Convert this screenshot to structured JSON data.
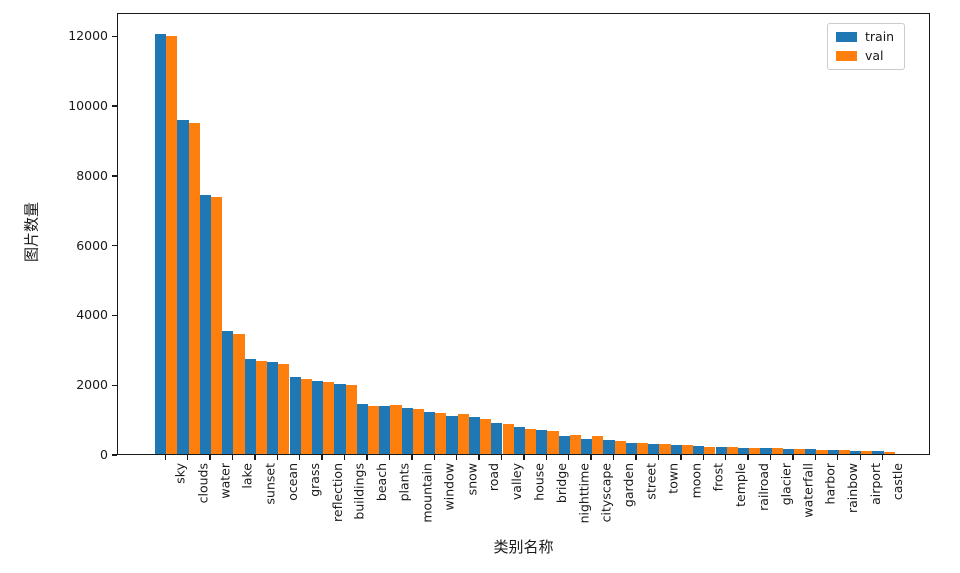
{
  "figure": {
    "background": "#ffffff"
  },
  "chart_data": {
    "type": "bar",
    "title": "",
    "xlabel": "类别名称",
    "ylabel": "图片数量",
    "categories": [
      "sky",
      "clouds",
      "water",
      "lake",
      "sunset",
      "ocean",
      "grass",
      "reflection",
      "buildings",
      "beach",
      "plants",
      "mountain",
      "window",
      "snow",
      "road",
      "valley",
      "house",
      "bridge",
      "nighttime",
      "cityscape",
      "garden",
      "street",
      "town",
      "moon",
      "frost",
      "temple",
      "railroad",
      "glacier",
      "waterfall",
      "harbor",
      "rainbow",
      "airport",
      "castle"
    ],
    "series": [
      {
        "name": "train",
        "color": "#1f77b4",
        "values": [
          12050,
          9580,
          7430,
          3520,
          2730,
          2650,
          2210,
          2090,
          2020,
          1430,
          1380,
          1330,
          1210,
          1100,
          1050,
          880,
          780,
          680,
          520,
          440,
          390,
          320,
          300,
          260,
          220,
          200,
          185,
          170,
          150,
          135,
          110,
          95,
          80
        ]
      },
      {
        "name": "val",
        "color": "#ff7f0e",
        "values": [
          11980,
          9500,
          7380,
          3450,
          2680,
          2570,
          2140,
          2060,
          1970,
          1390,
          1410,
          1290,
          1180,
          1150,
          1000,
          850,
          730,
          650,
          550,
          530,
          385,
          310,
          290,
          250,
          210,
          195,
          175,
          160,
          145,
          125,
          105,
          90,
          70
        ]
      }
    ],
    "yticks": [
      0,
      2000,
      4000,
      6000,
      8000,
      10000,
      12000
    ],
    "ylim": [
      0,
      12670
    ],
    "grid": false,
    "legend_position": "upper right",
    "xtick_rotation": 90
  },
  "legend": {
    "entries": [
      {
        "label": "train",
        "color": "#1f77b4"
      },
      {
        "label": "val",
        "color": "#ff7f0e"
      }
    ]
  }
}
